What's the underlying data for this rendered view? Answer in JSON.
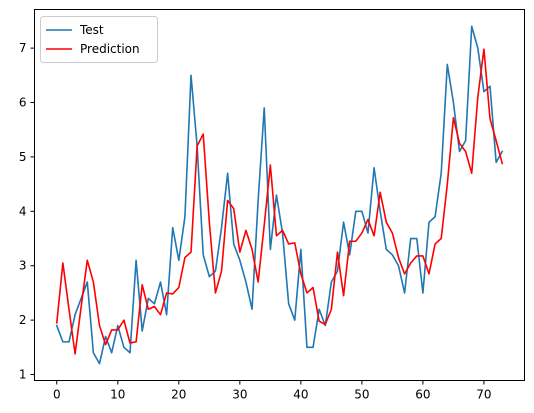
{
  "chart_data": {
    "type": "line",
    "title": "",
    "xlabel": "",
    "ylabel": "",
    "xlim": [
      -3.65,
      76.65
    ],
    "ylim": [
      0.89,
      7.71
    ],
    "xticks": [
      0,
      10,
      20,
      30,
      40,
      50,
      60,
      70
    ],
    "yticks": [
      1,
      2,
      3,
      4,
      5,
      6,
      7
    ],
    "legend_position": "top-left",
    "grid": false,
    "series": [
      {
        "name": "Test",
        "color": "#1f77b4",
        "x": [
          0,
          1,
          2,
          3,
          4,
          5,
          6,
          7,
          8,
          9,
          10,
          11,
          12,
          13,
          14,
          15,
          16,
          17,
          18,
          19,
          20,
          21,
          22,
          23,
          24,
          25,
          26,
          27,
          28,
          29,
          30,
          31,
          32,
          33,
          34,
          35,
          36,
          37,
          38,
          39,
          40,
          41,
          42,
          43,
          44,
          45,
          46,
          47,
          48,
          49,
          50,
          51,
          52,
          53,
          54,
          55,
          56,
          57,
          58,
          59,
          60,
          61,
          62,
          63,
          64,
          65,
          66,
          67,
          68,
          69,
          70,
          71,
          72,
          73
        ],
        "values": [
          1.9,
          1.6,
          1.6,
          2.1,
          2.4,
          2.7,
          1.4,
          1.2,
          1.7,
          1.4,
          1.9,
          1.5,
          1.4,
          3.1,
          1.8,
          2.4,
          2.3,
          2.7,
          2.1,
          3.7,
          3.1,
          3.9,
          6.5,
          5.2,
          3.2,
          2.8,
          2.9,
          3.7,
          4.7,
          3.4,
          3.1,
          2.7,
          2.2,
          4.2,
          5.9,
          3.3,
          4.3,
          3.6,
          2.3,
          2.0,
          3.3,
          1.5,
          1.5,
          2.2,
          1.9,
          2.7,
          2.9,
          3.8,
          3.2,
          4.0,
          4.0,
          3.6,
          4.8,
          4.0,
          3.3,
          3.2,
          3.0,
          2.5,
          3.5,
          3.5,
          2.5,
          3.8,
          3.9,
          4.7,
          6.7,
          6.0,
          5.1,
          5.3,
          7.4,
          7.0,
          6.2,
          6.3,
          4.9,
          5.1
        ]
      },
      {
        "name": "Prediction",
        "color": "#ff0000",
        "x": [
          0,
          1,
          2,
          3,
          4,
          5,
          6,
          7,
          8,
          9,
          10,
          11,
          12,
          13,
          14,
          15,
          16,
          17,
          18,
          19,
          20,
          21,
          22,
          23,
          24,
          25,
          26,
          27,
          28,
          29,
          30,
          31,
          32,
          33,
          34,
          35,
          36,
          37,
          38,
          39,
          40,
          41,
          42,
          43,
          44,
          45,
          46,
          47,
          48,
          49,
          50,
          51,
          52,
          53,
          54,
          55,
          56,
          57,
          58,
          59,
          60,
          61,
          62,
          63,
          64,
          65,
          66,
          67,
          68,
          69,
          70,
          71,
          72,
          73
        ],
        "values": [
          1.95,
          3.05,
          2.2,
          1.38,
          2.25,
          3.1,
          2.7,
          1.9,
          1.55,
          1.82,
          1.82,
          2.0,
          1.58,
          1.6,
          2.65,
          2.2,
          2.25,
          2.1,
          2.5,
          2.48,
          2.6,
          3.15,
          3.25,
          5.2,
          5.42,
          3.8,
          2.5,
          2.9,
          4.2,
          4.05,
          3.25,
          3.65,
          3.3,
          2.7,
          3.75,
          4.85,
          3.55,
          3.65,
          3.4,
          3.42,
          2.85,
          2.5,
          2.6,
          1.98,
          1.92,
          2.2,
          3.25,
          2.45,
          3.45,
          3.45,
          3.6,
          3.85,
          3.55,
          4.35,
          3.8,
          3.6,
          3.15,
          2.85,
          3.05,
          3.18,
          3.18,
          2.85,
          3.4,
          3.5,
          4.5,
          5.72,
          5.25,
          5.1,
          4.7,
          6.1,
          6.98,
          5.7,
          5.3,
          4.88
        ]
      }
    ]
  }
}
